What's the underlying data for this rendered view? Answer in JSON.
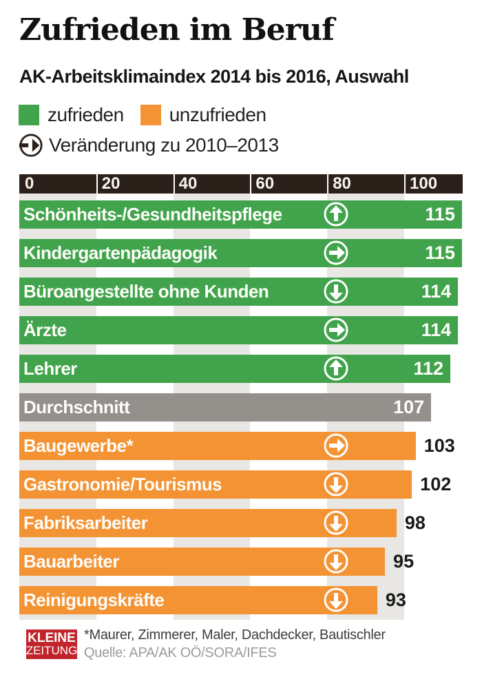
{
  "header": {
    "title": "Zufrieden im Beruf",
    "subtitle": "AK-Arbeitsklimaindex 2014 bis 2016, Auswahl"
  },
  "legend": {
    "satisfied_label": "zufrieden",
    "unsatisfied_label": "unzufrieden",
    "change_label": "Veränderung zu 2010–2013"
  },
  "colors": {
    "satisfied": "#41a44c",
    "unsatisfied": "#f49334",
    "average": "#94908c",
    "axis_bar": "#2b211a",
    "grid_band": "#e8e7e4",
    "logo_red": "#c2242c"
  },
  "chart_data": {
    "type": "bar",
    "orientation": "horizontal",
    "title": "Zufrieden im Beruf",
    "subtitle": "AK-Arbeitsklimaindex 2014 bis 2016, Auswahl",
    "xlabel": "",
    "ylabel": "",
    "x_ticks": [
      0,
      20,
      40,
      60,
      80,
      100
    ],
    "xlim": [
      0,
      115
    ],
    "legend_entries": [
      "zufrieden",
      "unzufrieden"
    ],
    "trend_note": "Veränderung zu 2010–2013",
    "bars": [
      {
        "label": "Schönheits-/Gesundheitspflege",
        "value": 115,
        "group": "satisfied",
        "trend": "up"
      },
      {
        "label": "Kindergartenpädagogik",
        "value": 115,
        "group": "satisfied",
        "trend": "steady"
      },
      {
        "label": "Büroangestellte ohne Kunden",
        "value": 114,
        "group": "satisfied",
        "trend": "down"
      },
      {
        "label": "Ärzte",
        "value": 114,
        "group": "satisfied",
        "trend": "steady"
      },
      {
        "label": "Lehrer",
        "value": 112,
        "group": "satisfied",
        "trend": "up"
      },
      {
        "label": "Durchschnitt",
        "value": 107,
        "group": "average",
        "trend": null
      },
      {
        "label": "Baugewerbe*",
        "value": 103,
        "group": "unsatisfied",
        "trend": "steady"
      },
      {
        "label": "Gastronomie/Tourismus",
        "value": 102,
        "group": "unsatisfied",
        "trend": "down"
      },
      {
        "label": "Fabriksarbeiter",
        "value": 98,
        "group": "unsatisfied",
        "trend": "down"
      },
      {
        "label": "Bauarbeiter",
        "value": 95,
        "group": "unsatisfied",
        "trend": "down"
      },
      {
        "label": "Reinigungskräfte",
        "value": 93,
        "group": "unsatisfied",
        "trend": "down"
      }
    ]
  },
  "footer": {
    "logo_line1": "KLEINE",
    "logo_line2": "ZEITUNG",
    "footnote": "*Maurer, Zimmerer, Maler, Dachdecker, Bautischler",
    "source": "Quelle: APA/AK OÖ/SORA/IFES"
  }
}
